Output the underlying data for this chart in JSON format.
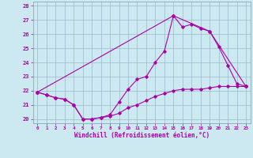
{
  "xlabel": "Windchill (Refroidissement éolien,°C)",
  "background_color": "#cce8f0",
  "grid_color": "#99bbcc",
  "line_color": "#aa00aa",
  "xlim": [
    -0.5,
    23.5
  ],
  "ylim": [
    19.7,
    28.3
  ],
  "yticks": [
    20,
    21,
    22,
    23,
    24,
    25,
    26,
    27,
    28
  ],
  "xticks": [
    0,
    1,
    2,
    3,
    4,
    5,
    6,
    7,
    8,
    9,
    10,
    11,
    12,
    13,
    14,
    15,
    16,
    17,
    18,
    19,
    20,
    21,
    22,
    23
  ],
  "series1_x": [
    0,
    1,
    2,
    3,
    4,
    5,
    6,
    7,
    8,
    9,
    10,
    11,
    12,
    13,
    14,
    15,
    16,
    17,
    18,
    19,
    20,
    21,
    22,
    23
  ],
  "series1_y": [
    21.9,
    21.7,
    21.5,
    21.4,
    21.0,
    20.0,
    20.0,
    20.1,
    20.3,
    21.2,
    22.1,
    22.8,
    23.0,
    24.0,
    24.8,
    27.3,
    26.5,
    26.7,
    26.4,
    26.2,
    25.1,
    23.8,
    22.5,
    22.3
  ],
  "series2_x": [
    0,
    15,
    19,
    23
  ],
  "series2_y": [
    21.9,
    27.3,
    26.2,
    22.3
  ],
  "series3_x": [
    0,
    1,
    2,
    3,
    4,
    5,
    6,
    7,
    8,
    9,
    10,
    11,
    12,
    13,
    14,
    15,
    16,
    17,
    18,
    19,
    20,
    21,
    22,
    23
  ],
  "series3_y": [
    21.9,
    21.7,
    21.5,
    21.4,
    21.0,
    20.0,
    20.0,
    20.1,
    20.2,
    20.4,
    20.8,
    21.0,
    21.3,
    21.6,
    21.8,
    22.0,
    22.1,
    22.1,
    22.1,
    22.2,
    22.3,
    22.3,
    22.3,
    22.3
  ]
}
